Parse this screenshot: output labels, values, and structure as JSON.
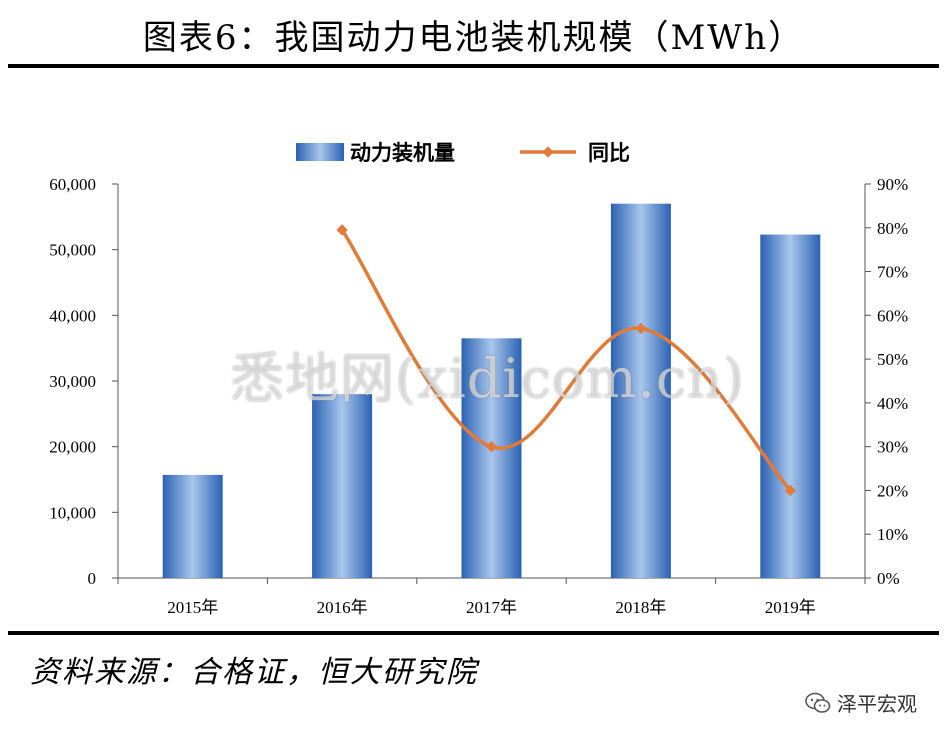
{
  "title": "图表6：我国动力电池装机规模（MWh）",
  "source": "资料来源：合格证，恒大研究院",
  "brand": "泽平宏观",
  "watermark": "悉地网(xidicom.cn)",
  "chart_data": {
    "type": "bar",
    "categories": [
      "2015年",
      "2016年",
      "2017年",
      "2018年",
      "2019年"
    ],
    "series": [
      {
        "name": "动力装机量",
        "type": "bar",
        "axis": "left",
        "color": "#3f7fcc",
        "values": [
          15700,
          28000,
          36500,
          57000,
          52300
        ]
      },
      {
        "name": "同比",
        "type": "line",
        "axis": "right",
        "color": "#e07b39",
        "values": [
          null,
          0.795,
          0.3,
          0.57,
          0.2
        ]
      }
    ],
    "y_left": {
      "min": 0,
      "max": 60000,
      "step": 10000,
      "ticks": [
        "0",
        "10,000",
        "20,000",
        "30,000",
        "40,000",
        "50,000",
        "60,000"
      ]
    },
    "y_right": {
      "min": 0,
      "max": 0.9,
      "step": 0.1,
      "ticks": [
        "0%",
        "10%",
        "20%",
        "30%",
        "40%",
        "50%",
        "60%",
        "70%",
        "80%",
        "90%"
      ]
    },
    "legend_position": "top-center",
    "grid": false
  }
}
